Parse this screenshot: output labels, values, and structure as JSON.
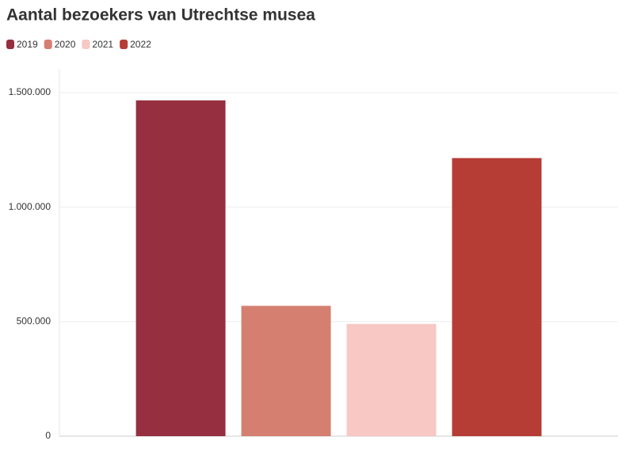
{
  "chart_data": {
    "type": "bar",
    "title": "Aantal bezoekers van Utrechtse musea",
    "categories": [
      null
    ],
    "series": [
      {
        "name": "2019",
        "color": "#962f40",
        "values": [
          1466000
        ]
      },
      {
        "name": "2020",
        "color": "#d47f70",
        "values": [
          569000
        ]
      },
      {
        "name": "2021",
        "color": "#f7c8c4",
        "values": [
          490000
        ]
      },
      {
        "name": "2022",
        "color": "#b53d35",
        "values": [
          1214000
        ]
      }
    ],
    "ylim": [
      0,
      1600000
    ],
    "yticks": [
      0,
      {
        "value": 500000,
        "label": "500.000"
      },
      {
        "value": 1000000,
        "label": "1.000.000"
      },
      {
        "value": 1500000,
        "label": "1.500.000"
      }
    ],
    "grid": true
  }
}
